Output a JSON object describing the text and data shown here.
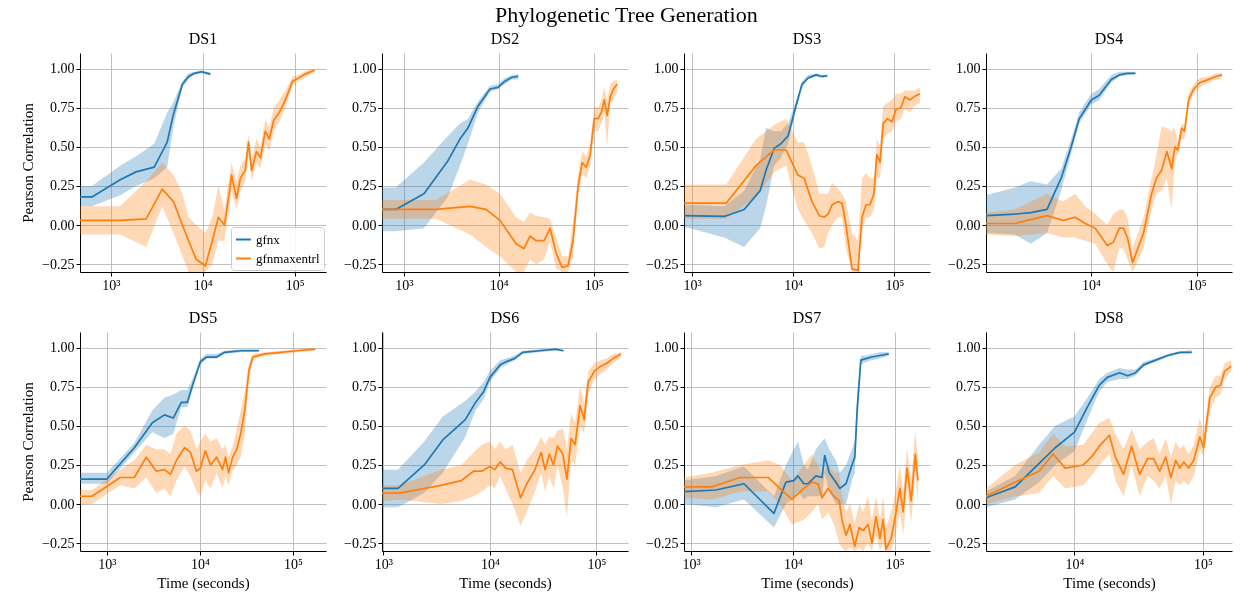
{
  "chart_data": [
    {
      "type": "line",
      "title": "DS1",
      "ylabel": "Pearson Correlation",
      "annotations": [
        "Phylogenetic Tree Generation"
      ],
      "log": "x",
      "grid": true,
      "legend": "bottom right",
      "xlim": [
        460,
        220000
      ],
      "ylim": [
        -0.3,
        1.1
      ],
      "xticks": [
        {
          "value": 1000,
          "label": "10³"
        },
        {
          "value": 10000,
          "label": "10⁴"
        },
        {
          "value": 100000,
          "label": "10⁵"
        }
      ],
      "yticks": [
        {
          "value": -0.25,
          "label": "−0.25"
        },
        {
          "value": 0,
          "label": "0.00"
        },
        {
          "value": 0.25,
          "label": "0.25"
        },
        {
          "value": 0.5,
          "label": "0.50"
        },
        {
          "value": 0.75,
          "label": "0.75"
        },
        {
          "value": 1,
          "label": "1.00"
        }
      ],
      "series": [
        {
          "name": "gfnx",
          "color": "#1f77b4",
          "x": [
            460,
            620,
            1260,
            1880,
            2960,
            4100,
            4750,
            6000,
            7000,
            8100,
            9700,
            12100
          ],
          "values": [
            0.18,
            0.18,
            0.29,
            0.34,
            0.37,
            0.53,
            0.7,
            0.9,
            0.95,
            0.97,
            0.98,
            0.965
          ],
          "lower": [
            0.12,
            0.12,
            0.19,
            0.25,
            0.3,
            0.37,
            0.62,
            0.88,
            0.93,
            0.96,
            0.97,
            0.955
          ],
          "upper": [
            0.25,
            0.25,
            0.38,
            0.44,
            0.52,
            0.72,
            0.78,
            0.92,
            0.97,
            0.98,
            0.99,
            0.975
          ]
        },
        {
          "name": "gfnmaxentrl",
          "color": "#ff7f0e",
          "x": [
            460,
            1260,
            2420,
            3620,
            4800,
            6000,
            7000,
            8500,
            10700,
            12700,
            14800,
            17200,
            19400,
            20600,
            23300,
            25700,
            29000,
            31500,
            34100,
            38500,
            42500,
            48000,
            53000,
            59300,
            68300,
            79400,
            95100,
            110600,
            135000,
            165000
          ],
          "values": [
            0.03,
            0.03,
            0.04,
            0.23,
            0.15,
            0.0,
            -0.1,
            -0.22,
            -0.26,
            -0.1,
            0.05,
            0.0,
            0.2,
            0.32,
            0.17,
            0.3,
            0.35,
            0.53,
            0.35,
            0.47,
            0.43,
            0.6,
            0.55,
            0.67,
            0.72,
            0.8,
            0.92,
            0.94,
            0.97,
            0.99
          ],
          "lower": [
            -0.06,
            -0.06,
            -0.14,
            0.12,
            -0.05,
            -0.2,
            -0.3,
            -0.3,
            -0.3,
            -0.25,
            -0.1,
            -0.1,
            0.1,
            0.22,
            0.1,
            0.22,
            0.28,
            0.45,
            0.28,
            0.4,
            0.36,
            0.52,
            0.47,
            0.6,
            0.66,
            0.75,
            0.89,
            0.92,
            0.95,
            0.98
          ],
          "upper": [
            0.12,
            0.12,
            0.28,
            0.4,
            0.32,
            0.2,
            0.05,
            0.0,
            -0.05,
            0.05,
            0.25,
            0.1,
            0.3,
            0.4,
            0.28,
            0.38,
            0.42,
            0.58,
            0.42,
            0.55,
            0.5,
            0.68,
            0.62,
            0.75,
            0.8,
            0.86,
            0.95,
            0.96,
            0.99,
            1.0
          ]
        }
      ]
    },
    {
      "type": "line",
      "title": "DS2",
      "log": "x",
      "grid": true,
      "xlim": [
        590,
        229000
      ],
      "ylim": [
        -0.3,
        1.1
      ],
      "xticks": [
        {
          "value": 1000,
          "label": "10³"
        },
        {
          "value": 10000,
          "label": "10⁴"
        },
        {
          "value": 100000,
          "label": "10⁵"
        }
      ],
      "yticks": [
        {
          "value": -0.25,
          "label": "−0.25"
        },
        {
          "value": 0,
          "label": "0.00"
        },
        {
          "value": 0.25,
          "label": "0.25"
        },
        {
          "value": 0.5,
          "label": "0.50"
        },
        {
          "value": 0.75,
          "label": "0.75"
        },
        {
          "value": 1,
          "label": "1.00"
        }
      ],
      "series": [
        {
          "color": "#1f77b4",
          "x": [
            590,
            825,
            1630,
            2910,
            3900,
            4730,
            6040,
            8080,
            9800,
            11600,
            13800,
            16000
          ],
          "values": [
            0.1,
            0.1,
            0.2,
            0.41,
            0.55,
            0.62,
            0.76,
            0.87,
            0.88,
            0.92,
            0.945,
            0.95
          ],
          "lower": [
            -0.04,
            -0.04,
            -0.02,
            0.18,
            0.38,
            0.52,
            0.72,
            0.85,
            0.87,
            0.9,
            0.93,
            0.93
          ],
          "upper": [
            0.24,
            0.24,
            0.4,
            0.57,
            0.65,
            0.68,
            0.79,
            0.89,
            0.9,
            0.94,
            0.96,
            0.965
          ]
        },
        {
          "color": "#ff7f0e",
          "x": [
            590,
            2180,
            4970,
            7330,
            10300,
            15200,
            18400,
            21300,
            24700,
            30000,
            34700,
            40100,
            46400,
            53700,
            60400,
            68400,
            75500,
            83200,
            91700,
            101000,
            111000,
            120000,
            129000,
            138000,
            149000,
            161000,
            176000
          ],
          "values": [
            0.1,
            0.1,
            0.12,
            0.1,
            0.03,
            -0.12,
            -0.15,
            -0.07,
            -0.1,
            -0.1,
            -0.02,
            -0.18,
            -0.27,
            -0.26,
            -0.1,
            0.25,
            0.4,
            0.37,
            0.45,
            0.68,
            0.68,
            0.72,
            0.8,
            0.7,
            0.82,
            0.87,
            0.9
          ],
          "lower": [
            0.04,
            0.04,
            -0.06,
            -0.14,
            -0.2,
            -0.3,
            -0.3,
            -0.22,
            -0.25,
            -0.22,
            -0.1,
            -0.28,
            -0.3,
            -0.3,
            -0.2,
            0.18,
            0.33,
            0.3,
            0.38,
            0.6,
            0.6,
            0.65,
            0.72,
            0.5,
            0.78,
            0.8,
            0.85
          ],
          "upper": [
            0.16,
            0.16,
            0.29,
            0.26,
            0.2,
            0.05,
            0.02,
            0.08,
            0.06,
            0.05,
            0.04,
            -0.08,
            -0.2,
            -0.2,
            0.02,
            0.32,
            0.47,
            0.44,
            0.52,
            0.76,
            0.75,
            0.8,
            0.88,
            0.8,
            0.9,
            0.92,
            0.93
          ]
        }
      ]
    },
    {
      "type": "line",
      "title": "DS3",
      "log": "x",
      "grid": true,
      "xlim": [
        830,
        225000
      ],
      "ylim": [
        -0.3,
        1.1
      ],
      "xticks": [
        {
          "value": 1000,
          "label": "10³"
        },
        {
          "value": 10000,
          "label": "10⁴"
        },
        {
          "value": 100000,
          "label": "10⁵"
        }
      ],
      "yticks": [
        {
          "value": -0.25,
          "label": "−0.25"
        },
        {
          "value": 0,
          "label": "0.00"
        },
        {
          "value": 0.25,
          "label": "0.25"
        },
        {
          "value": 0.5,
          "label": "0.50"
        },
        {
          "value": 0.75,
          "label": "0.75"
        },
        {
          "value": 1,
          "label": "1.00"
        }
      ],
      "series": [
        {
          "color": "#1f77b4",
          "x": [
            834,
            2070,
            3270,
            4700,
            5380,
            6460,
            7540,
            8880,
            10500,
            12200,
            14000,
            16800,
            19300,
            21700
          ],
          "values": [
            0.06,
            0.055,
            0.1,
            0.22,
            0.35,
            0.49,
            0.52,
            0.57,
            0.75,
            0.9,
            0.94,
            0.96,
            0.95,
            0.955
          ],
          "lower": [
            -0.01,
            -0.08,
            -0.14,
            -0.02,
            0.12,
            0.38,
            0.43,
            0.52,
            0.72,
            0.88,
            0.93,
            0.95,
            0.94,
            0.945
          ],
          "upper": [
            0.13,
            0.12,
            0.22,
            0.42,
            0.62,
            0.6,
            0.6,
            0.65,
            0.78,
            0.92,
            0.96,
            0.97,
            0.96,
            0.96
          ]
        },
        {
          "color": "#ff7f0e",
          "x": [
            834,
            2170,
            4280,
            6460,
            8490,
            11100,
            12800,
            15300,
            18100,
            20200,
            22100,
            24200,
            27700,
            30400,
            33200,
            38100,
            43700,
            47800,
            52400,
            57400,
            62800,
            67000,
            72100,
            77500,
            84900,
            94700,
            104000,
            116000,
            127000,
            143000,
            156000,
            179000
          ],
          "values": [
            0.14,
            0.14,
            0.38,
            0.48,
            0.48,
            0.32,
            0.3,
            0.15,
            0.06,
            0.05,
            0.07,
            0.13,
            0.15,
            0.14,
            0.0,
            -0.28,
            -0.29,
            0.05,
            0.13,
            0.13,
            0.2,
            0.45,
            0.4,
            0.65,
            0.68,
            0.66,
            0.74,
            0.75,
            0.82,
            0.8,
            0.82,
            0.84
          ],
          "lower": [
            0.04,
            0.04,
            0.18,
            0.34,
            0.38,
            0.1,
            0.03,
            -0.05,
            -0.15,
            -0.14,
            -0.05,
            0.0,
            0.05,
            0.05,
            -0.15,
            -0.3,
            -0.3,
            -0.05,
            0.05,
            0.05,
            0.1,
            0.3,
            0.3,
            0.55,
            0.58,
            0.6,
            0.66,
            0.68,
            0.74,
            0.72,
            0.76,
            0.78
          ],
          "upper": [
            0.26,
            0.26,
            0.55,
            0.64,
            0.68,
            0.53,
            0.53,
            0.38,
            0.2,
            0.2,
            0.2,
            0.27,
            0.23,
            0.2,
            0.15,
            -0.05,
            -0.1,
            0.3,
            0.33,
            0.3,
            0.3,
            0.55,
            0.5,
            0.76,
            0.78,
            0.8,
            0.84,
            0.84,
            0.86,
            0.86,
            0.86,
            0.88
          ]
        }
      ]
    },
    {
      "type": "line",
      "title": "DS4",
      "log": "x",
      "grid": true,
      "xlim": [
        1020,
        216000
      ],
      "ylim": [
        -0.3,
        1.1
      ],
      "xticks": [
        {
          "value": 10000,
          "label": "10⁴"
        },
        {
          "value": 100000,
          "label": "10⁵"
        }
      ],
      "yticks": [
        {
          "value": -0.25,
          "label": "−0.25"
        },
        {
          "value": 0,
          "label": "0.00"
        },
        {
          "value": 0.25,
          "label": "0.25"
        },
        {
          "value": 0.5,
          "label": "0.50"
        },
        {
          "value": 0.75,
          "label": "0.75"
        },
        {
          "value": 1,
          "label": "1.00"
        }
      ],
      "series": [
        {
          "color": "#1f77b4",
          "x": [
            1020,
            1910,
            2710,
            3850,
            5240,
            6520,
            7760,
            10100,
            12000,
            15600,
            18600,
            22200,
            26400
          ],
          "values": [
            0.06,
            0.07,
            0.08,
            0.1,
            0.3,
            0.5,
            0.68,
            0.8,
            0.83,
            0.93,
            0.96,
            0.97,
            0.97
          ],
          "lower": [
            -0.05,
            -0.06,
            -0.12,
            -0.05,
            0.22,
            0.46,
            0.65,
            0.77,
            0.8,
            0.91,
            0.95,
            0.96,
            0.965
          ],
          "upper": [
            0.19,
            0.24,
            0.28,
            0.26,
            0.36,
            0.55,
            0.72,
            0.84,
            0.87,
            0.96,
            0.98,
            0.98,
            0.98
          ]
        },
        {
          "color": "#ff7f0e",
          "x": [
            1020,
            1910,
            3850,
            5470,
            7110,
            8850,
            11000,
            14300,
            16300,
            18600,
            20300,
            22200,
            24800,
            31500,
            37500,
            41700,
            46700,
            52300,
            58100,
            62300,
            66200,
            72300,
            76900,
            83900,
            94000,
            107000,
            128000,
            152000,
            174000
          ],
          "values": [
            0.01,
            0.01,
            0.06,
            0.03,
            0.05,
            0.01,
            -0.02,
            -0.13,
            -0.11,
            -0.02,
            -0.02,
            -0.08,
            -0.24,
            -0.05,
            0.2,
            0.3,
            0.35,
            0.47,
            0.36,
            0.5,
            0.48,
            0.62,
            0.6,
            0.8,
            0.87,
            0.91,
            0.93,
            0.95,
            0.96
          ],
          "lower": [
            -0.06,
            -0.07,
            -0.05,
            -0.08,
            -0.08,
            -0.1,
            -0.12,
            -0.25,
            -0.3,
            -0.15,
            -0.15,
            -0.22,
            -0.3,
            -0.15,
            0.1,
            0.2,
            0.22,
            0.3,
            0.1,
            0.4,
            0.45,
            0.55,
            0.55,
            0.76,
            0.84,
            0.88,
            0.91,
            0.93,
            0.94
          ],
          "upper": [
            0.08,
            0.1,
            0.2,
            0.15,
            0.2,
            0.12,
            0.07,
            0.0,
            0.07,
            0.1,
            0.1,
            0.05,
            -0.15,
            0.05,
            0.3,
            0.45,
            0.63,
            0.62,
            0.6,
            0.62,
            0.52,
            0.65,
            0.64,
            0.84,
            0.9,
            0.94,
            0.95,
            0.97,
            0.97
          ]
        }
      ]
    },
    {
      "type": "line",
      "title": "DS5",
      "xlabel": "Time (seconds)",
      "ylabel": "Pearson Correlation",
      "log": "x",
      "grid": true,
      "xlim": [
        514,
        226000
      ],
      "ylim": [
        -0.3,
        1.1
      ],
      "xticks": [
        {
          "value": 1000,
          "label": "10³"
        },
        {
          "value": 10000,
          "label": "10⁴"
        },
        {
          "value": 100000,
          "label": "10⁵"
        }
      ],
      "yticks": [
        {
          "value": -0.25,
          "label": "−0.25"
        },
        {
          "value": 0,
          "label": "0.00"
        },
        {
          "value": 0.25,
          "label": "0.25"
        },
        {
          "value": 0.5,
          "label": "0.50"
        },
        {
          "value": 0.75,
          "label": "0.75"
        },
        {
          "value": 1,
          "label": "1.00"
        }
      ],
      "series": [
        {
          "color": "#1f77b4",
          "x": [
            514,
            1000,
            1970,
            3080,
            4150,
            5160,
            6300,
            7310,
            8320,
            10100,
            11800,
            15100,
            18400,
            27400,
            43000
          ],
          "values": [
            0.16,
            0.16,
            0.36,
            0.52,
            0.57,
            0.55,
            0.65,
            0.65,
            0.76,
            0.91,
            0.94,
            0.94,
            0.97,
            0.98,
            0.98
          ],
          "lower": [
            0.13,
            0.13,
            0.33,
            0.46,
            0.42,
            0.45,
            0.62,
            0.62,
            0.73,
            0.89,
            0.93,
            0.93,
            0.96,
            0.97,
            0.975
          ],
          "upper": [
            0.2,
            0.2,
            0.39,
            0.6,
            0.68,
            0.7,
            0.73,
            0.73,
            0.8,
            0.93,
            0.96,
            0.96,
            0.98,
            0.99,
            0.99
          ]
        },
        {
          "color": "#ff7f0e",
          "x": [
            514,
            692,
            1390,
            1970,
            2650,
            3400,
            4150,
            4820,
            5590,
            6820,
            7910,
            9180,
            10100,
            11400,
            13000,
            15100,
            17500,
            18800,
            20300,
            22500,
            24800,
            27400,
            30300,
            33500,
            37000,
            49800,
            74200,
            110000,
            173000
          ],
          "values": [
            0.05,
            0.05,
            0.17,
            0.17,
            0.3,
            0.21,
            0.22,
            0.19,
            0.28,
            0.36,
            0.33,
            0.21,
            0.23,
            0.34,
            0.25,
            0.3,
            0.22,
            0.3,
            0.2,
            0.3,
            0.35,
            0.45,
            0.6,
            0.85,
            0.94,
            0.96,
            0.97,
            0.98,
            0.99
          ],
          "lower": [
            0.0,
            0.0,
            0.12,
            0.1,
            0.17,
            0.07,
            0.1,
            0.05,
            0.15,
            0.24,
            0.18,
            0.08,
            0.05,
            0.15,
            0.1,
            0.2,
            0.1,
            0.18,
            0.12,
            0.22,
            0.25,
            0.3,
            0.45,
            0.78,
            0.92,
            0.95,
            0.96,
            0.97,
            0.98
          ],
          "upper": [
            0.09,
            0.09,
            0.22,
            0.28,
            0.38,
            0.35,
            0.35,
            0.32,
            0.45,
            0.5,
            0.47,
            0.35,
            0.4,
            0.45,
            0.4,
            0.42,
            0.35,
            0.38,
            0.3,
            0.37,
            0.48,
            0.6,
            0.72,
            0.9,
            0.96,
            0.97,
            0.98,
            0.99,
            1.0
          ]
        }
      ]
    },
    {
      "type": "line",
      "title": "DS6",
      "xlabel": "Time (seconds)",
      "log": "x",
      "grid": true,
      "xlim": [
        970,
        198000
      ],
      "ylim": [
        -0.3,
        1.1
      ],
      "xticks": [
        {
          "value": 1000,
          "label": "10³"
        },
        {
          "value": 10000,
          "label": "10⁴"
        },
        {
          "value": 100000,
          "label": "10⁵"
        }
      ],
      "yticks": [
        {
          "value": -0.25,
          "label": "−0.25"
        },
        {
          "value": 0,
          "label": "0.00"
        },
        {
          "value": 0.25,
          "label": "0.25"
        },
        {
          "value": 0.5,
          "label": "0.50"
        },
        {
          "value": 0.75,
          "label": "0.75"
        },
        {
          "value": 1,
          "label": "1.00"
        }
      ],
      "series": [
        {
          "color": "#1f77b4",
          "x": [
            973,
            1370,
            2420,
            3610,
            5880,
            7330,
            8750,
            10000,
            12500,
            14200,
            17000,
            20300,
            28900,
            41300,
            49200
          ],
          "values": [
            0.1,
            0.1,
            0.25,
            0.41,
            0.54,
            0.65,
            0.72,
            0.81,
            0.89,
            0.91,
            0.93,
            0.97,
            0.98,
            0.99,
            0.98
          ],
          "lower": [
            -0.02,
            -0.02,
            0.07,
            0.2,
            0.43,
            0.6,
            0.67,
            0.78,
            0.87,
            0.89,
            0.92,
            0.96,
            0.97,
            0.98,
            0.975
          ],
          "upper": [
            0.22,
            0.22,
            0.4,
            0.56,
            0.66,
            0.72,
            0.78,
            0.85,
            0.92,
            0.93,
            0.95,
            0.98,
            0.99,
            0.99,
            0.985
          ]
        },
        {
          "color": "#ff7f0e",
          "x": [
            973,
            1420,
            3460,
            5380,
            7020,
            8380,
            10000,
            11100,
            12500,
            14000,
            16300,
            19400,
            22200,
            26500,
            30300,
            33000,
            36100,
            39500,
            43100,
            48400,
            52900,
            57800,
            63100,
            70200,
            76700,
            83800,
            95700,
            109000,
            125000,
            143000,
            170000
          ],
          "values": [
            0.07,
            0.07,
            0.12,
            0.15,
            0.21,
            0.21,
            0.24,
            0.22,
            0.27,
            0.23,
            0.22,
            0.04,
            0.13,
            0.22,
            0.33,
            0.22,
            0.32,
            0.25,
            0.37,
            0.32,
            0.16,
            0.42,
            0.38,
            0.63,
            0.54,
            0.78,
            0.85,
            0.88,
            0.9,
            0.93,
            0.96
          ],
          "lower": [
            0.02,
            0.03,
            0.0,
            0.02,
            0.05,
            0.08,
            0.12,
            0.1,
            0.18,
            0.1,
            0.0,
            -0.14,
            -0.05,
            0.08,
            0.2,
            0.08,
            0.18,
            0.1,
            0.25,
            0.1,
            -0.08,
            0.28,
            0.25,
            0.5,
            0.45,
            0.7,
            0.8,
            0.83,
            0.86,
            0.9,
            0.94
          ],
          "upper": [
            0.12,
            0.12,
            0.22,
            0.25,
            0.33,
            0.38,
            0.4,
            0.35,
            0.4,
            0.35,
            0.38,
            0.2,
            0.28,
            0.35,
            0.43,
            0.38,
            0.43,
            0.42,
            0.47,
            0.48,
            0.35,
            0.58,
            0.52,
            0.75,
            0.65,
            0.85,
            0.9,
            0.92,
            0.93,
            0.96,
            0.97
          ]
        }
      ]
    },
    {
      "type": "line",
      "title": "DS7",
      "xlabel": "Time (seconds)",
      "log": "x",
      "grid": true,
      "xlim": [
        850,
        222000
      ],
      "ylim": [
        -0.3,
        1.1
      ],
      "xticks": [
        {
          "value": 1000,
          "label": "10³"
        },
        {
          "value": 10000,
          "label": "10⁴"
        },
        {
          "value": 100000,
          "label": "10⁵"
        }
      ],
      "yticks": [
        {
          "value": -0.25,
          "label": "−0.25"
        },
        {
          "value": 0,
          "label": "0.00"
        },
        {
          "value": 0.25,
          "label": "0.25"
        },
        {
          "value": 0.5,
          "label": "0.50"
        },
        {
          "value": 0.75,
          "label": "0.75"
        },
        {
          "value": 1,
          "label": "1.00"
        }
      ],
      "series": [
        {
          "color": "#1f77b4",
          "x": [
            850,
            1750,
            3300,
            6500,
            8530,
            10200,
            11200,
            12800,
            14000,
            16800,
            19300,
            20500,
            22700,
            26400,
            28900,
            33200,
            38000,
            40500,
            42700,
            46400,
            52100,
            59700,
            71600,
            87300
          ],
          "values": [
            0.08,
            0.09,
            0.13,
            -0.06,
            0.14,
            0.15,
            0.18,
            0.13,
            0.13,
            0.18,
            0.17,
            0.31,
            0.2,
            0.14,
            0.1,
            0.13,
            0.25,
            0.3,
            0.6,
            0.92,
            0.93,
            0.94,
            0.95,
            0.96
          ],
          "lower": [
            0.0,
            -0.02,
            0.03,
            -0.15,
            0.0,
            0.04,
            0.08,
            0.03,
            0.05,
            0.05,
            0.05,
            0.2,
            0.08,
            0.0,
            0.0,
            0.0,
            0.15,
            0.2,
            0.5,
            0.89,
            0.91,
            0.92,
            0.93,
            0.95
          ],
          "upper": [
            0.15,
            0.18,
            0.24,
            0.05,
            0.25,
            0.35,
            0.4,
            0.25,
            0.22,
            0.35,
            0.4,
            0.42,
            0.35,
            0.28,
            0.2,
            0.25,
            0.35,
            0.4,
            0.7,
            0.95,
            0.95,
            0.96,
            0.97,
            0.97
          ]
        },
        {
          "color": "#ff7f0e",
          "x": [
            850,
            1600,
            3010,
            5680,
            7450,
            9780,
            12800,
            15400,
            17600,
            19300,
            22100,
            25300,
            28500,
            30300,
            33200,
            36300,
            40500,
            44700,
            48900,
            54600,
            59700,
            65400,
            71600,
            76900,
            82000,
            92200,
            103000,
            112000,
            121000,
            132000,
            145000,
            159000,
            169000
          ],
          "values": [
            0.11,
            0.11,
            0.17,
            0.17,
            0.1,
            0.03,
            0.1,
            0.14,
            0.13,
            0.04,
            0.1,
            0.05,
            0.02,
            -0.1,
            -0.2,
            -0.13,
            -0.27,
            -0.15,
            -0.17,
            -0.13,
            -0.25,
            -0.08,
            -0.22,
            -0.1,
            -0.29,
            -0.22,
            -0.05,
            0.1,
            -0.05,
            0.23,
            0.02,
            0.32,
            0.15
          ],
          "lower": [
            0.04,
            0.03,
            0.08,
            0.08,
            0.0,
            -0.13,
            -0.1,
            -0.05,
            0.0,
            -0.1,
            -0.05,
            -0.13,
            -0.25,
            -0.28,
            -0.3,
            -0.28,
            -0.3,
            -0.28,
            -0.3,
            -0.25,
            -0.3,
            -0.2,
            -0.3,
            -0.25,
            -0.3,
            -0.3,
            -0.18,
            -0.05,
            -0.2,
            0.1,
            -0.12,
            0.2,
            0.0
          ],
          "upper": [
            0.17,
            0.2,
            0.25,
            0.28,
            0.25,
            0.15,
            0.25,
            0.32,
            0.25,
            0.18,
            0.25,
            0.2,
            0.2,
            0.05,
            -0.05,
            0.0,
            -0.12,
            0.0,
            -0.05,
            0.05,
            -0.1,
            0.05,
            -0.1,
            0.05,
            -0.15,
            -0.05,
            0.1,
            0.25,
            0.08,
            0.36,
            0.15,
            0.47,
            0.3
          ]
        }
      ]
    },
    {
      "type": "line",
      "title": "DS8",
      "xlabel": "Time (seconds)",
      "log": "x",
      "grid": true,
      "xlim": [
        2050,
        168000
      ],
      "ylim": [
        -0.3,
        1.1
      ],
      "xticks": [
        {
          "value": 10000,
          "label": "10⁴"
        },
        {
          "value": 100000,
          "label": "10⁵"
        }
      ],
      "yticks": [
        {
          "value": -0.25,
          "label": "−0.25"
        },
        {
          "value": 0,
          "label": "0.00"
        },
        {
          "value": 0.25,
          "label": "0.25"
        },
        {
          "value": 0.5,
          "label": "0.50"
        },
        {
          "value": 0.75,
          "label": "0.75"
        },
        {
          "value": 1,
          "label": "1.00"
        }
      ],
      "series": [
        {
          "color": "#1f77b4",
          "x": [
            2050,
            3450,
            5310,
            7080,
            10000,
            12600,
            15600,
            18000,
            22400,
            25900,
            29900,
            34500,
            42800,
            53100,
            65900,
            81700
          ],
          "values": [
            0.04,
            0.11,
            0.26,
            0.36,
            0.46,
            0.62,
            0.76,
            0.81,
            0.84,
            0.82,
            0.84,
            0.89,
            0.92,
            0.95,
            0.97,
            0.97
          ],
          "lower": [
            -0.02,
            0.03,
            0.14,
            0.25,
            0.34,
            0.54,
            0.72,
            0.78,
            0.8,
            0.8,
            0.82,
            0.88,
            0.91,
            0.94,
            0.96,
            0.965
          ],
          "upper": [
            0.08,
            0.18,
            0.38,
            0.5,
            0.56,
            0.68,
            0.8,
            0.84,
            0.87,
            0.86,
            0.86,
            0.91,
            0.93,
            0.96,
            0.975,
            0.985
          ]
        },
        {
          "color": "#ff7f0e",
          "x": [
            2050,
            3450,
            5310,
            6820,
            8470,
            11700,
            13500,
            15600,
            18700,
            20800,
            24100,
            27800,
            32100,
            37000,
            41300,
            46000,
            51200,
            56200,
            61300,
            65900,
            70800,
            77200,
            84800,
            94400,
            101000,
            113000,
            126000,
            137000,
            147000,
            166000
          ],
          "values": [
            0.05,
            0.14,
            0.21,
            0.32,
            0.23,
            0.25,
            0.3,
            0.37,
            0.44,
            0.3,
            0.19,
            0.37,
            0.19,
            0.29,
            0.29,
            0.21,
            0.3,
            0.17,
            0.28,
            0.23,
            0.27,
            0.23,
            0.28,
            0.43,
            0.36,
            0.68,
            0.75,
            0.76,
            0.85,
            0.88
          ],
          "lower": [
            0.0,
            0.05,
            0.07,
            0.18,
            0.1,
            0.12,
            0.18,
            0.25,
            0.32,
            0.15,
            0.05,
            0.25,
            0.05,
            0.18,
            0.15,
            0.1,
            0.18,
            0.0,
            0.15,
            0.12,
            0.15,
            0.12,
            0.18,
            0.35,
            0.3,
            0.6,
            0.68,
            0.7,
            0.8,
            0.85
          ],
          "upper": [
            0.1,
            0.25,
            0.33,
            0.45,
            0.37,
            0.38,
            0.45,
            0.52,
            0.55,
            0.45,
            0.35,
            0.48,
            0.35,
            0.4,
            0.42,
            0.32,
            0.42,
            0.3,
            0.4,
            0.35,
            0.38,
            0.32,
            0.38,
            0.55,
            0.45,
            0.75,
            0.82,
            0.82,
            0.9,
            0.92
          ]
        }
      ]
    }
  ]
}
